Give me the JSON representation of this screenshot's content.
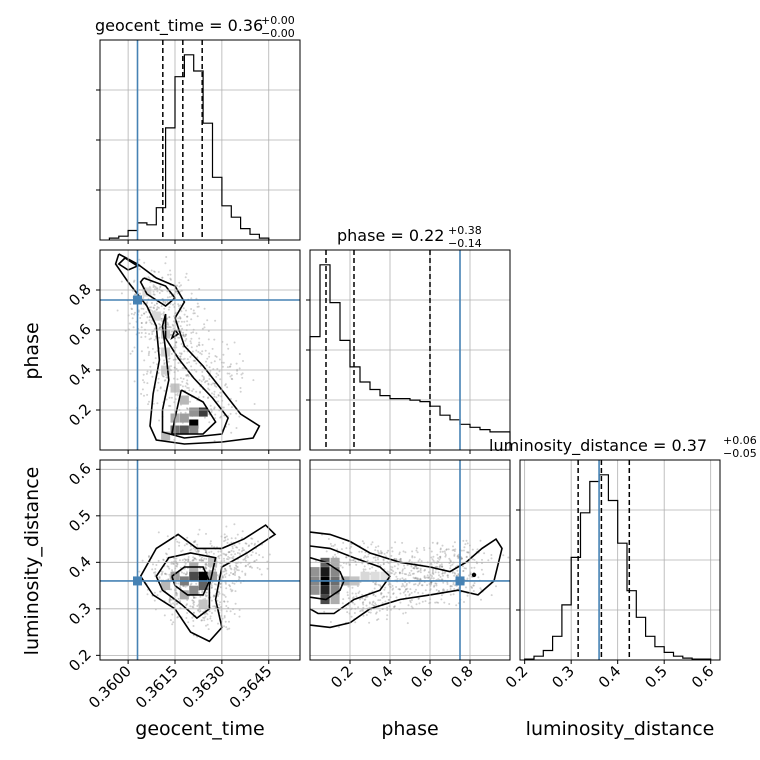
{
  "chart_data": {
    "type": "corner",
    "parameters": [
      {
        "key": "geocent_time",
        "label": "geocent_time",
        "range": [
          0.3591,
          0.3655
        ],
        "ticks": [
          0.36,
          0.3615,
          0.363,
          0.3645
        ],
        "tick_labels": [
          "0.3600",
          "0.3615",
          "0.3630",
          "0.3645"
        ],
        "truth": 0.3603,
        "title": {
          "main": "geocent_time = 0.36",
          "plus": "+0.00",
          "minus": "−0.00"
        },
        "quantiles": [
          0.36111,
          0.36175,
          0.36237
        ],
        "histogram": {
          "edges": [
            0.3594,
            0.3597,
            0.36,
            0.3603,
            0.3606,
            0.3609,
            0.3612,
            0.3615,
            0.3618,
            0.3621,
            0.3624,
            0.3627,
            0.363,
            0.3633,
            0.3636,
            0.3639,
            0.3642,
            0.3645
          ],
          "counts": [
            2,
            4,
            10,
            18,
            16,
            34,
            118,
            172,
            195,
            178,
            123,
            66,
            36,
            24,
            12,
            6,
            2
          ]
        }
      },
      {
        "key": "phase",
        "label": "phase",
        "range": [
          0.0,
          1.0
        ],
        "ticks": [
          0.2,
          0.4,
          0.6,
          0.8
        ],
        "tick_labels": [
          "0.2",
          "0.4",
          "0.6",
          "0.8"
        ],
        "truth": 0.75,
        "title": {
          "main": "phase = 0.22",
          "plus": "+0.38",
          "minus": "−0.14"
        },
        "quantiles": [
          0.08,
          0.22,
          0.6
        ],
        "histogram": {
          "edges": [
            0.0,
            0.05,
            0.1,
            0.15,
            0.2,
            0.25,
            0.3,
            0.35,
            0.4,
            0.45,
            0.5,
            0.55,
            0.6,
            0.65,
            0.7,
            0.75,
            0.8,
            0.85,
            0.9,
            0.95,
            1.0
          ],
          "counts": [
            150,
            245,
            195,
            145,
            110,
            90,
            80,
            72,
            68,
            68,
            66,
            64,
            58,
            46,
            40,
            34,
            30,
            27,
            24,
            24
          ]
        }
      },
      {
        "key": "luminosity_distance",
        "label": "luminosity_distance",
        "range": [
          0.19,
          0.62
        ],
        "ticks": [
          0.2,
          0.3,
          0.4,
          0.5,
          0.6
        ],
        "tick_labels": [
          "0.2",
          "0.3",
          "0.4",
          "0.5",
          "0.6"
        ],
        "truth": 0.36,
        "title": {
          "main": "luminosity_distance = 0.37",
          "plus": "+0.06",
          "minus": "−0.05"
        },
        "quantiles": [
          0.315,
          0.365,
          0.425
        ],
        "histogram": {
          "edges": [
            0.2,
            0.22,
            0.24,
            0.26,
            0.28,
            0.3,
            0.32,
            0.34,
            0.36,
            0.38,
            0.4,
            0.42,
            0.44,
            0.46,
            0.48,
            0.5,
            0.52,
            0.54,
            0.56,
            0.58,
            0.6
          ],
          "counts": [
            1,
            4,
            10,
            25,
            58,
            108,
            155,
            188,
            195,
            168,
            123,
            73,
            45,
            25,
            14,
            8,
            4,
            2,
            1,
            1
          ]
        }
      }
    ],
    "panels_2d": [
      {
        "x": "geocent_time",
        "y": "phase",
        "density_cells": [
          {
            "x": 0.3621,
            "y": 0.13,
            "v": 1.0
          },
          {
            "x": 0.3624,
            "y": 0.19,
            "v": 0.75
          },
          {
            "x": 0.3618,
            "y": 0.1,
            "v": 0.65
          },
          {
            "x": 0.3615,
            "y": 0.1,
            "v": 0.55
          },
          {
            "x": 0.3621,
            "y": 0.1,
            "v": 0.45
          },
          {
            "x": 0.3621,
            "y": 0.19,
            "v": 0.4
          },
          {
            "x": 0.3618,
            "y": 0.16,
            "v": 0.35
          },
          {
            "x": 0.3615,
            "y": 0.16,
            "v": 0.3
          },
          {
            "x": 0.3612,
            "y": 0.07,
            "v": 0.25
          },
          {
            "x": 0.3618,
            "y": 0.25,
            "v": 0.25
          },
          {
            "x": 0.3615,
            "y": 0.31,
            "v": 0.2
          },
          {
            "x": 0.3612,
            "y": 0.4,
            "v": 0.15
          },
          {
            "x": 0.3612,
            "y": 0.49,
            "v": 0.15
          },
          {
            "x": 0.3612,
            "y": 0.58,
            "v": 0.18
          },
          {
            "x": 0.3609,
            "y": 0.67,
            "v": 0.12
          },
          {
            "x": 0.3606,
            "y": 0.79,
            "v": 0.1
          }
        ],
        "contours": [
          [
            [
              0.3597,
              0.98
            ],
            [
              0.3603,
              0.93
            ],
            [
              0.3609,
              0.86
            ],
            [
              0.3615,
              0.82
            ],
            [
              0.3618,
              0.74
            ],
            [
              0.3615,
              0.66
            ],
            [
              0.3618,
              0.52
            ],
            [
              0.3624,
              0.42
            ],
            [
              0.363,
              0.3
            ],
            [
              0.3636,
              0.18
            ],
            [
              0.3642,
              0.12
            ],
            [
              0.364,
              0.06
            ],
            [
              0.363,
              0.04
            ],
            [
              0.3618,
              0.03
            ],
            [
              0.3609,
              0.05
            ],
            [
              0.3607,
              0.12
            ],
            [
              0.3608,
              0.28
            ],
            [
              0.361,
              0.45
            ],
            [
              0.3609,
              0.62
            ],
            [
              0.3606,
              0.72
            ],
            [
              0.36,
              0.84
            ],
            [
              0.3596,
              0.93
            ],
            [
              0.3597,
              0.98
            ]
          ],
          [
            [
              0.3599,
              0.96
            ],
            [
              0.3603,
              0.92
            ],
            [
              0.36,
              0.9
            ],
            [
              0.3597,
              0.93
            ],
            [
              0.3599,
              0.96
            ]
          ],
          [
            [
              0.3605,
              0.86
            ],
            [
              0.3612,
              0.82
            ],
            [
              0.3615,
              0.76
            ],
            [
              0.3612,
              0.72
            ],
            [
              0.3606,
              0.78
            ],
            [
              0.3604,
              0.84
            ],
            [
              0.3605,
              0.86
            ]
          ],
          [
            [
              0.3612,
              0.68
            ],
            [
              0.3612,
              0.56
            ],
            [
              0.3616,
              0.46
            ],
            [
              0.3621,
              0.36
            ],
            [
              0.3627,
              0.26
            ],
            [
              0.3632,
              0.16
            ],
            [
              0.363,
              0.08
            ],
            [
              0.3618,
              0.06
            ],
            [
              0.3611,
              0.09
            ],
            [
              0.3611,
              0.2
            ],
            [
              0.3613,
              0.35
            ],
            [
              0.3612,
              0.5
            ],
            [
              0.3611,
              0.62
            ],
            [
              0.3612,
              0.68
            ]
          ],
          [
            [
              0.3617,
              0.3
            ],
            [
              0.3624,
              0.24
            ],
            [
              0.3628,
              0.14
            ],
            [
              0.3624,
              0.08
            ],
            [
              0.3614,
              0.08
            ],
            [
              0.3615,
              0.16
            ],
            [
              0.3617,
              0.3
            ]
          ],
          [
            [
              0.3615,
              0.6
            ],
            [
              0.3616,
              0.58
            ],
            [
              0.3614,
              0.56
            ],
            [
              0.3615,
              0.6
            ]
          ]
        ]
      },
      {
        "x": "geocent_time",
        "y": "luminosity_distance",
        "density_cells": [
          {
            "x": 0.3624,
            "y": 0.37,
            "v": 1.0
          },
          {
            "x": 0.3621,
            "y": 0.37,
            "v": 0.7
          },
          {
            "x": 0.3624,
            "y": 0.35,
            "v": 0.6
          },
          {
            "x": 0.3618,
            "y": 0.36,
            "v": 0.5
          },
          {
            "x": 0.3621,
            "y": 0.34,
            "v": 0.45
          },
          {
            "x": 0.3615,
            "y": 0.37,
            "v": 0.35
          },
          {
            "x": 0.3627,
            "y": 0.37,
            "v": 0.35
          },
          {
            "x": 0.3618,
            "y": 0.33,
            "v": 0.3
          },
          {
            "x": 0.3621,
            "y": 0.39,
            "v": 0.3
          },
          {
            "x": 0.3612,
            "y": 0.35,
            "v": 0.25
          },
          {
            "x": 0.3627,
            "y": 0.4,
            "v": 0.2
          },
          {
            "x": 0.3624,
            "y": 0.31,
            "v": 0.2
          }
        ],
        "contours": [
          [
            [
              0.3604,
              0.37
            ],
            [
              0.3609,
              0.43
            ],
            [
              0.3616,
              0.46
            ],
            [
              0.3622,
              0.43
            ],
            [
              0.363,
              0.43
            ],
            [
              0.3637,
              0.45
            ],
            [
              0.3644,
              0.48
            ],
            [
              0.3647,
              0.46
            ],
            [
              0.3638,
              0.42
            ],
            [
              0.363,
              0.39
            ],
            [
              0.3628,
              0.32
            ],
            [
              0.363,
              0.26
            ],
            [
              0.3626,
              0.23
            ],
            [
              0.362,
              0.25
            ],
            [
              0.3615,
              0.3
            ],
            [
              0.3608,
              0.33
            ],
            [
              0.3604,
              0.37
            ]
          ],
          [
            [
              0.3609,
              0.37
            ],
            [
              0.3613,
              0.41
            ],
            [
              0.362,
              0.42
            ],
            [
              0.3628,
              0.41
            ],
            [
              0.3626,
              0.35
            ],
            [
              0.3626,
              0.3
            ],
            [
              0.3622,
              0.28
            ],
            [
              0.3617,
              0.31
            ],
            [
              0.3611,
              0.34
            ],
            [
              0.3609,
              0.37
            ]
          ],
          [
            [
              0.3614,
              0.37
            ],
            [
              0.3618,
              0.39
            ],
            [
              0.3624,
              0.39
            ],
            [
              0.3626,
              0.36
            ],
            [
              0.3624,
              0.33
            ],
            [
              0.3619,
              0.33
            ],
            [
              0.3615,
              0.35
            ],
            [
              0.3614,
              0.37
            ]
          ]
        ]
      },
      {
        "x": "phase",
        "y": "luminosity_distance",
        "density_cells": [
          {
            "x": 0.075,
            "y": 0.36,
            "v": 1.0
          },
          {
            "x": 0.075,
            "y": 0.38,
            "v": 0.9
          },
          {
            "x": 0.075,
            "y": 0.34,
            "v": 0.85
          },
          {
            "x": 0.075,
            "y": 0.32,
            "v": 0.7
          },
          {
            "x": 0.075,
            "y": 0.4,
            "v": 0.6
          },
          {
            "x": 0.125,
            "y": 0.36,
            "v": 0.55
          },
          {
            "x": 0.125,
            "y": 0.38,
            "v": 0.45
          },
          {
            "x": 0.125,
            "y": 0.34,
            "v": 0.45
          },
          {
            "x": 0.025,
            "y": 0.36,
            "v": 0.45
          },
          {
            "x": 0.025,
            "y": 0.38,
            "v": 0.4
          },
          {
            "x": 0.025,
            "y": 0.34,
            "v": 0.4
          },
          {
            "x": 0.175,
            "y": 0.36,
            "v": 0.3
          },
          {
            "x": 0.125,
            "y": 0.32,
            "v": 0.3
          },
          {
            "x": 0.125,
            "y": 0.4,
            "v": 0.3
          },
          {
            "x": 0.225,
            "y": 0.36,
            "v": 0.2
          },
          {
            "x": 0.275,
            "y": 0.37,
            "v": 0.12
          },
          {
            "x": 0.325,
            "y": 0.37,
            "v": 0.1
          },
          {
            "x": 0.375,
            "y": 0.37,
            "v": 0.08
          }
        ],
        "contours": [
          [
            [
              0.0,
              0.465
            ],
            [
              0.1,
              0.46
            ],
            [
              0.2,
              0.445
            ],
            [
              0.3,
              0.42
            ],
            [
              0.45,
              0.4
            ],
            [
              0.6,
              0.39
            ],
            [
              0.7,
              0.38
            ],
            [
              0.78,
              0.4
            ],
            [
              0.86,
              0.43
            ],
            [
              0.93,
              0.45
            ],
            [
              0.96,
              0.43
            ],
            [
              0.92,
              0.36
            ],
            [
              0.84,
              0.33
            ],
            [
              0.74,
              0.34
            ],
            [
              0.6,
              0.33
            ],
            [
              0.45,
              0.32
            ],
            [
              0.3,
              0.3
            ],
            [
              0.2,
              0.27
            ],
            [
              0.1,
              0.26
            ],
            [
              0.0,
              0.265
            ]
          ],
          [
            [
              0.0,
              0.435
            ],
            [
              0.1,
              0.43
            ],
            [
              0.22,
              0.41
            ],
            [
              0.35,
              0.39
            ],
            [
              0.4,
              0.37
            ],
            [
              0.35,
              0.34
            ],
            [
              0.22,
              0.32
            ],
            [
              0.12,
              0.29
            ],
            [
              0.04,
              0.29
            ],
            [
              0.0,
              0.3
            ]
          ],
          [
            [
              0.0,
              0.41
            ],
            [
              0.08,
              0.4
            ],
            [
              0.15,
              0.38
            ],
            [
              0.17,
              0.36
            ],
            [
              0.15,
              0.34
            ],
            [
              0.08,
              0.32
            ],
            [
              0.0,
              0.325
            ]
          ]
        ],
        "marker": {
          "x": 0.82,
          "y": 0.373
        }
      }
    ]
  }
}
